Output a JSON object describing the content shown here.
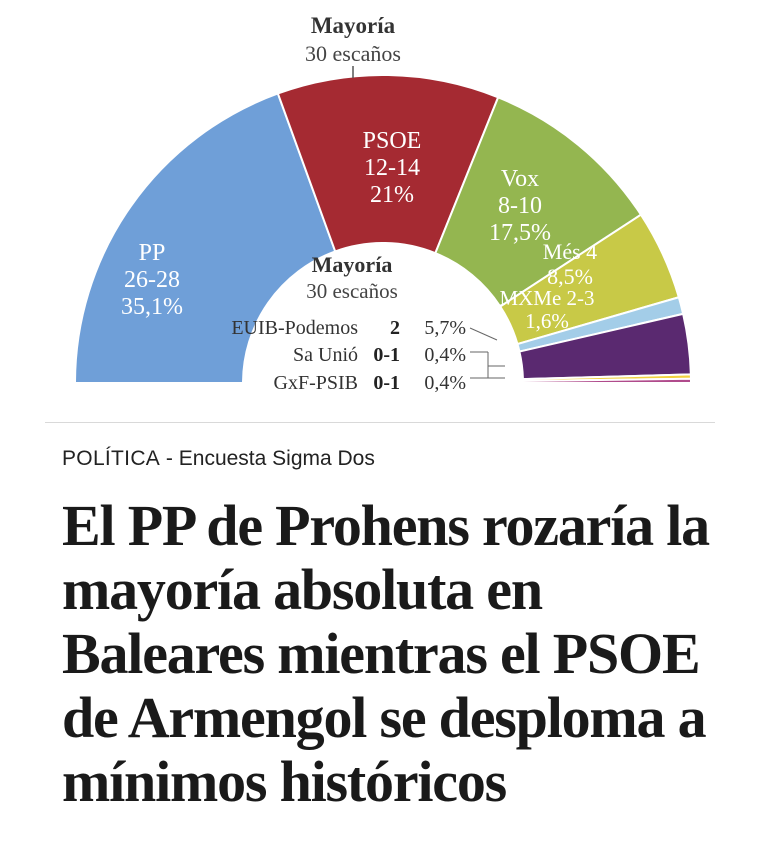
{
  "chart_data": {
    "type": "hemicycle",
    "majority": {
      "title": "Mayoría",
      "subtitle": "30 escaños"
    },
    "series": [
      {
        "party": "PP",
        "seats": "26-28",
        "pct": "35,1%",
        "value": 35.1,
        "color": "#6f9fd8"
      },
      {
        "party": "PSOE",
        "seats": "12-14",
        "pct": "21%",
        "value": 21.0,
        "color": "#a52a32"
      },
      {
        "party": "Vox",
        "seats": "8-10",
        "pct": "17,5%",
        "value": 17.5,
        "color": "#94b650"
      },
      {
        "party": "Més",
        "seats": "4",
        "pct": "8,5%",
        "value": 8.5,
        "color": "#c8c947"
      },
      {
        "party": "MXMe",
        "seats": "2-3",
        "pct": "1,6%",
        "value": 1.6,
        "color": "#a3cde8"
      },
      {
        "party": "EUIB-Podemos",
        "seats": "2",
        "pct": "5,7%",
        "value": 5.7,
        "color": "#5a2970"
      },
      {
        "party": "Sa Unió",
        "seats": "0-1",
        "pct": "0,4%",
        "value": 0.4,
        "color": "#f1d23f"
      },
      {
        "party": "GxF-PSIB",
        "seats": "0-1",
        "pct": "0,4%",
        "value": 0.4,
        "color": "#b04b8c"
      }
    ]
  },
  "article": {
    "section": "POLÍTICA",
    "separator": " - ",
    "source": "Encuesta Sigma Dos",
    "headline": "El PP de Prohens rozaría la mayoría absoluta en Baleares mientras el PSOE de Armengol se desploma a mínimos históricos"
  }
}
